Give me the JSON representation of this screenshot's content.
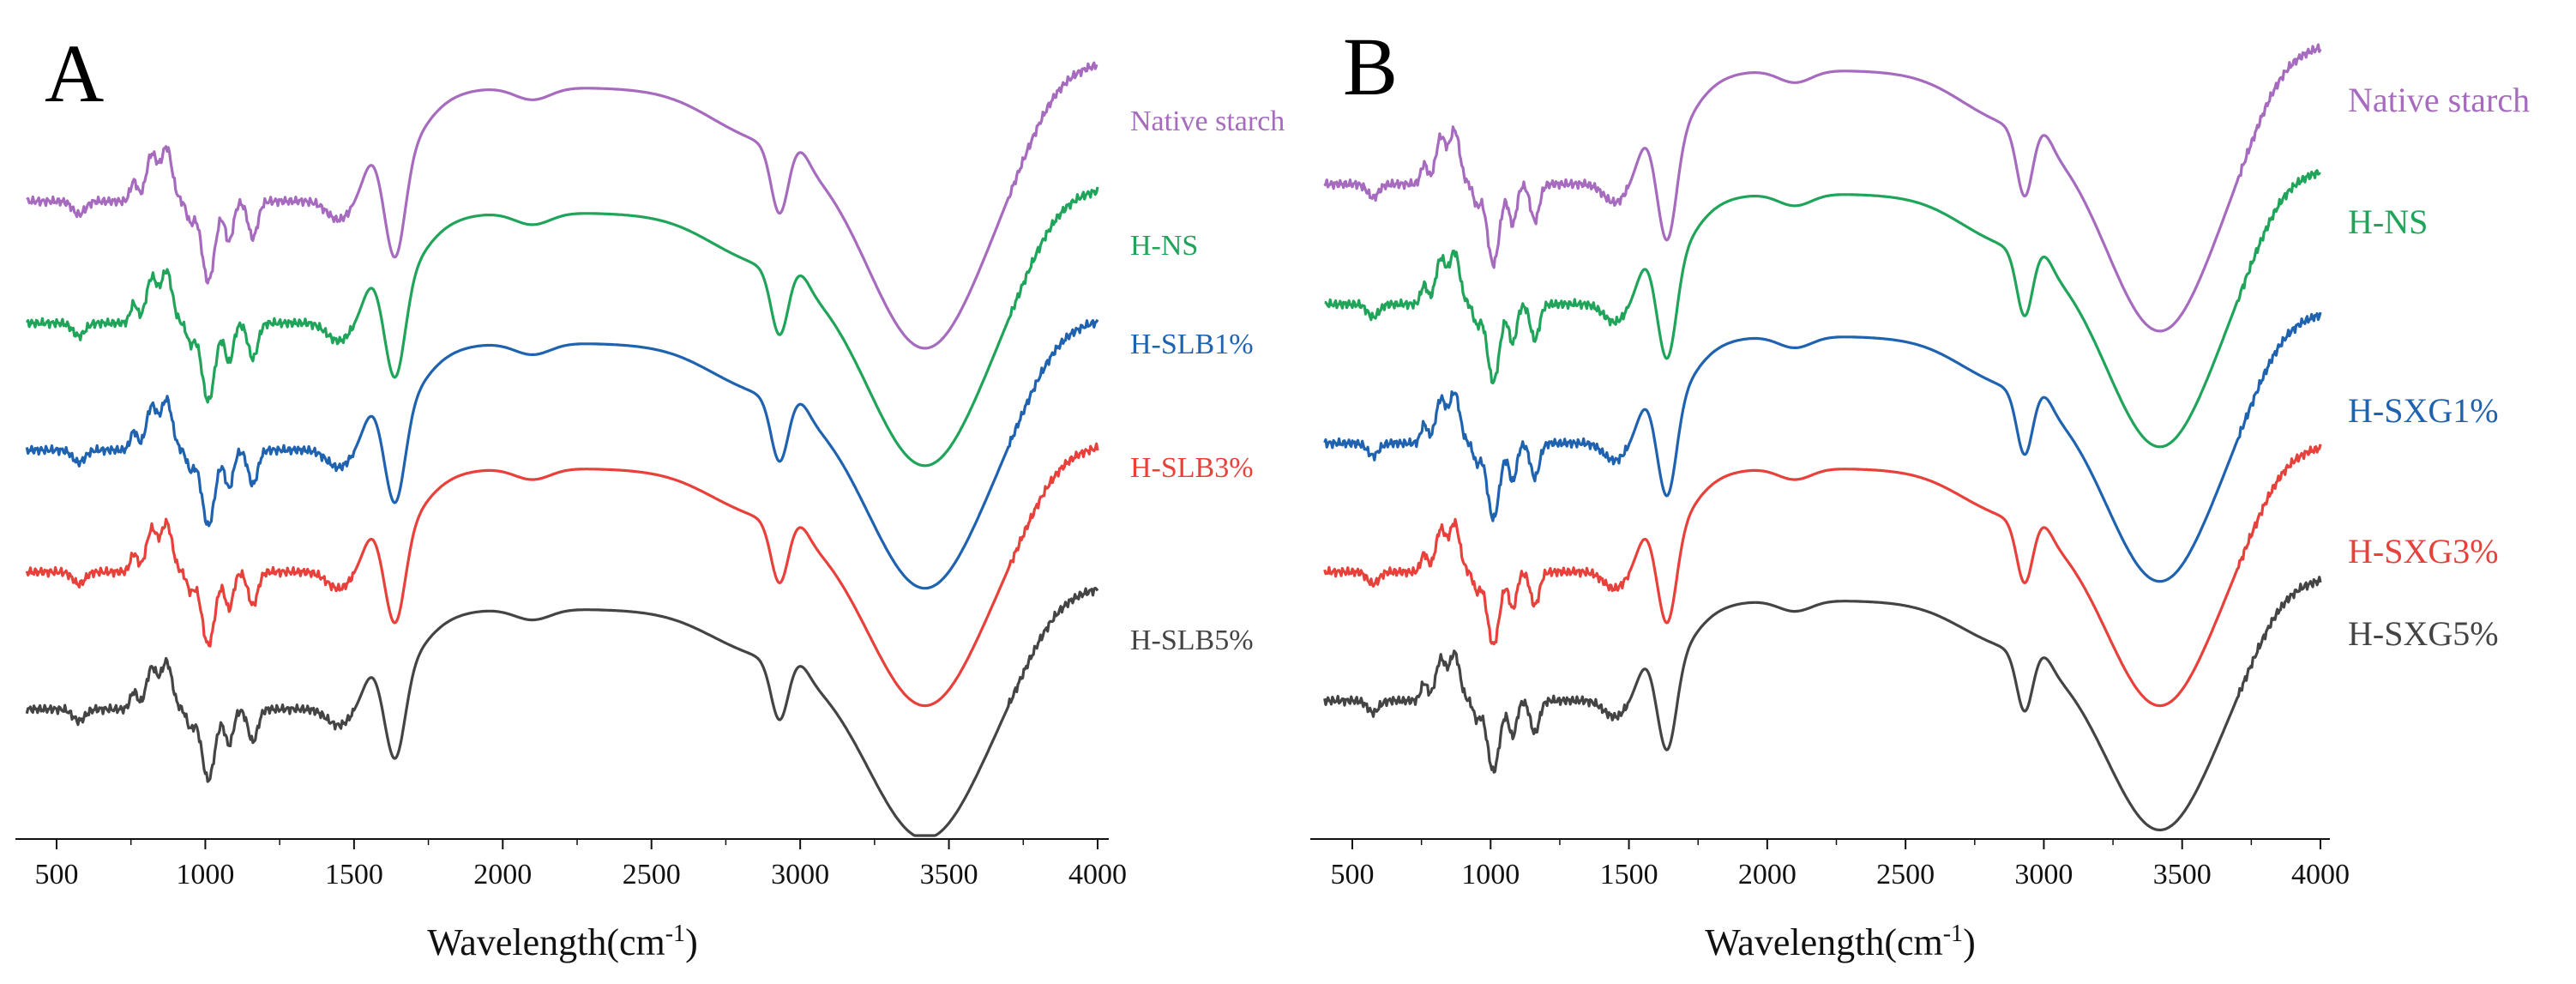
{
  "chart_data": [
    {
      "panel": "A",
      "type": "line",
      "title": "",
      "xlabel": "Wavelength(cm",
      "xlabel_sup": "-1",
      "xlabel_suffix": ")",
      "ylabel": "",
      "xlim": [
        400,
        4000
      ],
      "xticks": [
        "500",
        "1000",
        "1500",
        "2000",
        "2500",
        "3000",
        "3500",
        "4000"
      ],
      "xtick_values": [
        500,
        1000,
        1500,
        2000,
        2500,
        3000,
        3500,
        4000
      ],
      "grid": false,
      "legend_placement": "right, inline labels",
      "series": [
        {
          "name": "Native starch",
          "color": "#A66BBE"
        },
        {
          "name": "H-NS",
          "color": "#1FA45A"
        },
        {
          "name": "H-SLB1%",
          "color": "#1E62B0"
        },
        {
          "name": "H-SLB3%",
          "color": "#E8403A"
        },
        {
          "name": "H-SLB5%",
          "color": "#444444"
        }
      ]
    },
    {
      "panel": "B",
      "type": "line",
      "title": "",
      "xlabel": "Wavelength(cm",
      "xlabel_sup": "-1",
      "xlabel_suffix": ")",
      "ylabel": "",
      "xlim": [
        400,
        4000
      ],
      "xticks": [
        "500",
        "1000",
        "1500",
        "2000",
        "2500",
        "3000",
        "3500",
        "4000"
      ],
      "xtick_values": [
        500,
        1000,
        1500,
        2000,
        2500,
        3000,
        3500,
        4000
      ],
      "grid": false,
      "legend_placement": "right, inline labels",
      "series": [
        {
          "name": "Native starch",
          "color": "#A66BBE"
        },
        {
          "name": "H-NS",
          "color": "#1FA45A"
        },
        {
          "name": "H-SXG1%",
          "color": "#1E62B0"
        },
        {
          "name": "H-SXG3%",
          "color": "#E8403A"
        },
        {
          "name": "H-SXG5%",
          "color": "#444444"
        }
      ]
    }
  ]
}
